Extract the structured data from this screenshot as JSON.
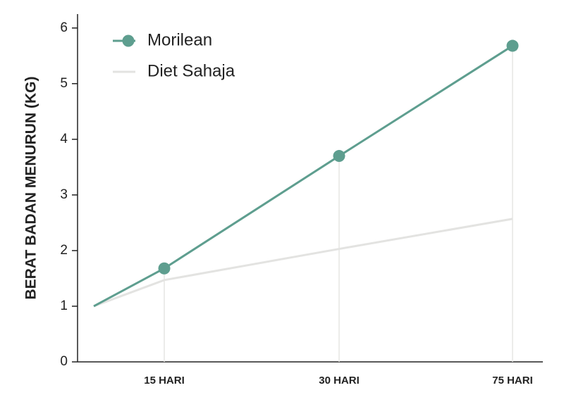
{
  "chart_data": {
    "type": "line",
    "y_label": "BERAT BADAN MENURUN (KG)",
    "categories": [
      null,
      "15 HARI",
      "30 HARI",
      "75 HARI"
    ],
    "series": [
      {
        "name": "Morilean",
        "color": "#5e9e8f",
        "values": [
          1,
          1.68,
          3.7,
          5.68
        ],
        "markers": true
      },
      {
        "name": "Diet Sahaja",
        "color": "#e3e3e1",
        "values": [
          1,
          1.47,
          2.03,
          2.57
        ],
        "markers": false
      }
    ],
    "ylim": [
      0,
      6.25
    ],
    "yticks": [
      0,
      1,
      2,
      3,
      4,
      5,
      6
    ],
    "legend": "top-left"
  }
}
